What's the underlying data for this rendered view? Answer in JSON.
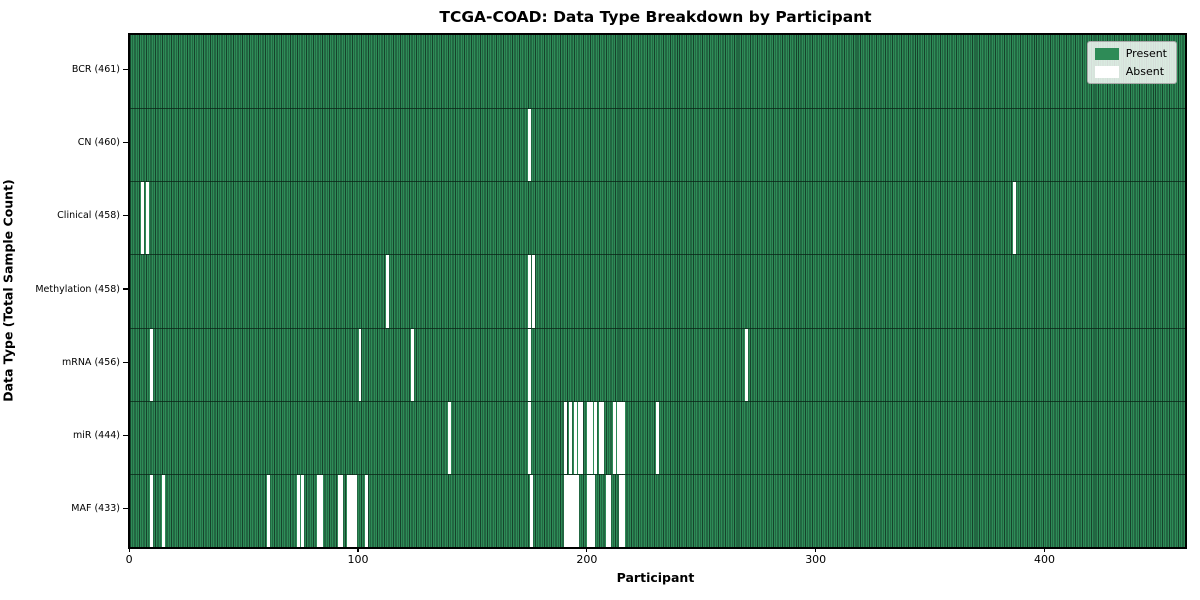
{
  "figure": {
    "title": "TCGA-COAD: Data Type Breakdown by Participant",
    "xlabel": "Participant",
    "ylabel": "Data Type (Total Sample Count)"
  },
  "legend": {
    "items": [
      {
        "label": "Present",
        "color": "#2e8b57"
      },
      {
        "label": "Absent",
        "color": "#ffffff"
      }
    ]
  },
  "chart_data": {
    "type": "heatmap",
    "subtype": "presence-absence-matrix",
    "title": "TCGA-COAD: Data Type Breakdown by Participant",
    "xlabel": "Participant",
    "ylabel": "Data Type (Total Sample Count)",
    "n_participants": 461,
    "xlim": [
      -0.5,
      460.5
    ],
    "x_ticks": [
      0,
      100,
      200,
      300,
      400
    ],
    "grid": false,
    "legend_position": "upper right",
    "colors": {
      "present": "#2e8b57",
      "present_edge": "#16432c",
      "absent": "#ffffff",
      "spine": "#000000"
    },
    "rows": [
      {
        "label": "BCR",
        "count": 461,
        "tick_label": "BCR (461)",
        "absent_participants": []
      },
      {
        "label": "CN",
        "count": 460,
        "tick_label": "CN (460)",
        "absent_participants": [
          174
        ]
      },
      {
        "label": "Clinical",
        "count": 458,
        "tick_label": "Clinical (458)",
        "absent_participants": [
          5,
          7,
          386
        ]
      },
      {
        "label": "Methylation",
        "count": 458,
        "tick_label": "Methylation (458)",
        "absent_participants": [
          112,
          174,
          176
        ]
      },
      {
        "label": "mRNA",
        "count": 456,
        "tick_label": "mRNA (456)",
        "absent_participants": [
          9,
          100,
          123,
          174,
          269
        ]
      },
      {
        "label": "miR",
        "count": 444,
        "tick_label": "miR (444)",
        "absent_participants": [
          139,
          174,
          190,
          192,
          194,
          196,
          197,
          200,
          201,
          203,
          205,
          206,
          211,
          213,
          214,
          215,
          230
        ]
      },
      {
        "label": "MAF",
        "count": 433,
        "tick_label": "MAF (433)",
        "absent_participants": [
          9,
          14,
          60,
          73,
          75,
          82,
          83,
          91,
          92,
          95,
          96,
          97,
          98,
          103,
          175,
          190,
          191,
          192,
          193,
          194,
          195,
          200,
          201,
          202,
          208,
          209,
          214,
          215
        ]
      }
    ]
  }
}
